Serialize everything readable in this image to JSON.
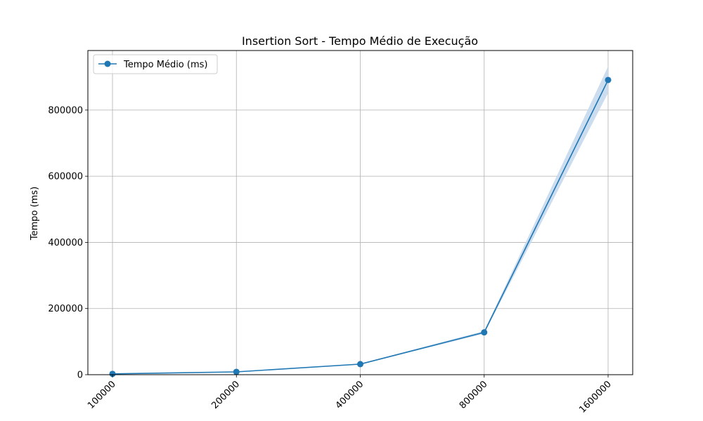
{
  "chart_data": {
    "type": "line",
    "title": "Insertion Sort - Tempo Médio de Execução",
    "xlabel": "",
    "ylabel": "Tempo (ms)",
    "categories": [
      "100000",
      "200000",
      "400000",
      "800000",
      "1600000"
    ],
    "series": [
      {
        "name": "Tempo Médio (ms)",
        "values": [
          2500,
          8500,
          32000,
          128000,
          891000
        ],
        "band_lower": [
          2300,
          8000,
          30500,
          124000,
          852000
        ],
        "band_upper": [
          2700,
          9000,
          33500,
          132000,
          932000
        ],
        "color": "#1f77b4",
        "band_color": "#c5d9ec"
      }
    ],
    "ylim": [
      0,
      980000
    ],
    "yticks": [
      0,
      200000,
      400000,
      600000,
      800000
    ],
    "ytick_labels": [
      "0",
      "200000",
      "400000",
      "600000",
      "800000"
    ],
    "grid": true,
    "legend": "upper left"
  }
}
